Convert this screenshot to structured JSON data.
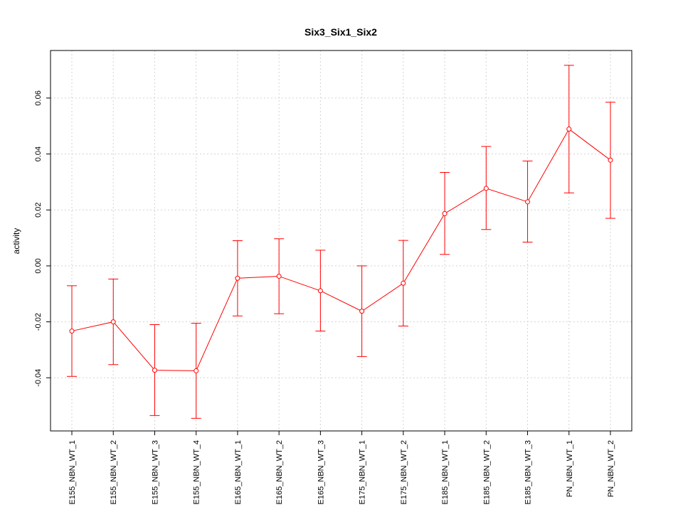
{
  "chart_data": {
    "type": "line",
    "title": "Six3_Six1_Six2",
    "xlabel": "",
    "ylabel": "activity",
    "categories": [
      "E155_NBN_WT_1",
      "E155_NBN_WT_2",
      "E155_NBN_WT_3",
      "E155_NBN_WT_4",
      "E165_NBN_WT_1",
      "E165_NBN_WT_2",
      "E165_NBN_WT_3",
      "E175_NBN_WT_1",
      "E175_NBN_WT_2",
      "E185_NBN_WT_1",
      "E185_NBN_WT_2",
      "E185_NBN_WT_3",
      "PN_NBN_WT_1",
      "PN_NBN_WT_2"
    ],
    "series": [
      {
        "values": [
          -0.0233,
          -0.02,
          -0.0373,
          -0.0375,
          -0.0044,
          -0.0037,
          -0.0089,
          -0.0162,
          -0.0062,
          0.0187,
          0.0277,
          0.0229,
          0.0489,
          0.0378
        ],
        "lower": [
          -0.0395,
          -0.0353,
          -0.0535,
          -0.0545,
          -0.0179,
          -0.0171,
          -0.0233,
          -0.0324,
          -0.0215,
          0.0041,
          0.013,
          0.0085,
          0.0261,
          0.017
        ],
        "upper": [
          -0.0071,
          -0.0047,
          -0.021,
          -0.0205,
          0.009,
          0.0097,
          0.0056,
          0.0,
          0.0091,
          0.0334,
          0.0427,
          0.0375,
          0.0717,
          0.0585
        ],
        "color": "#ff0000"
      }
    ],
    "ylim": [
      -0.059,
      0.077
    ],
    "yticks": [
      -0.04,
      -0.02,
      0.0,
      0.02,
      0.04,
      0.06
    ],
    "ytick_labels": [
      "-0.04",
      "-0.02",
      "0.00",
      "0.02",
      "0.04",
      "0.06"
    ],
    "grid": true,
    "legend": "none"
  }
}
